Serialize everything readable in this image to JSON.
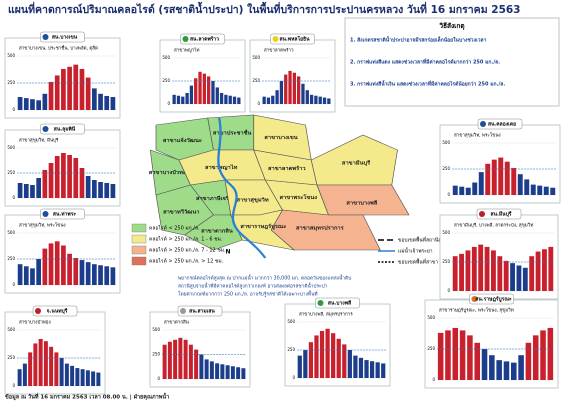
{
  "title": "แผนที่คาดการณ์ปริมาณคลอไรด์ (รสชาติน้ำประปา) ในพื้นที่บริการการประปานครหลวง วันที่ 16 มกราคม 2563",
  "panels": [
    {
      "label": "สน.บางเขน",
      "subtitle": "สาขาบางเขน, ประชาชื่น, บางพลัด, ดุสิต",
      "badge_color": "#1f4e9c",
      "threshold": 250,
      "ylim": [
        0,
        500
      ],
      "yticks": [
        0,
        250,
        500
      ],
      "colors": {
        "above": "#c8202c",
        "below": "#1c3d8c"
      },
      "values": [
        120,
        110,
        100,
        90,
        150,
        260,
        320,
        380,
        400,
        420,
        380,
        300,
        200,
        150,
        130,
        120
      ]
    },
    {
      "label": "สน.ลาดพร้าว",
      "subtitle": "สาขาพญาไท",
      "badge_color": "#2e9b3a",
      "threshold": 250,
      "ylim": [
        0,
        500
      ],
      "yticks": [
        0,
        250,
        500
      ],
      "colors": {
        "above": "#c8202c",
        "below": "#1c3d8c"
      },
      "values": [
        100,
        90,
        80,
        120,
        200,
        280,
        350,
        330,
        300,
        250,
        180,
        120,
        100,
        90,
        80,
        70
      ]
    },
    {
      "label": "สน.พหลโยธิน",
      "subtitle": "สาขาลาดพร้าว",
      "badge_color": "#e8d21f",
      "threshold": 250,
      "ylim": [
        0,
        500
      ],
      "yticks": [
        0,
        250,
        500
      ],
      "colors": {
        "above": "#c8202c",
        "below": "#1c3d8c"
      },
      "values": [
        80,
        70,
        90,
        150,
        250,
        320,
        360,
        340,
        300,
        220,
        150,
        100,
        90,
        80,
        70,
        60
      ]
    },
    {
      "label": "สน.ลุมพินี",
      "subtitle": "สาขาสุขุมวิท, มีนบุรี",
      "badge_color": "#1f4e9c",
      "threshold": 250,
      "ylim": [
        0,
        500
      ],
      "yticks": [
        0,
        250,
        500
      ],
      "colors": {
        "above": "#c8202c",
        "below": "#1c3d8c"
      },
      "values": [
        150,
        140,
        130,
        200,
        280,
        350,
        420,
        450,
        430,
        400,
        300,
        220,
        180,
        160,
        150,
        140
      ]
    },
    {
      "label": "สน.ท่าพระ",
      "subtitle": "สาขาสุขุมวิท, พระโขนง",
      "badge_color": "#1f4e9c",
      "threshold": 250,
      "ylim": [
        0,
        500
      ],
      "yticks": [
        0,
        250,
        500
      ],
      "colors": {
        "above": "#c8202c",
        "below": "#1c3d8c"
      },
      "values": [
        200,
        180,
        160,
        250,
        350,
        400,
        420,
        380,
        300,
        260,
        240,
        220,
        200,
        190,
        180,
        170
      ]
    },
    {
      "label": "สน.คลองเตย",
      "subtitle": "สาขาสุขุมวิท, พระโขนง",
      "badge_color": "#1f4e9c",
      "threshold": 250,
      "ylim": [
        0,
        500
      ],
      "yticks": [
        0,
        250,
        500
      ],
      "colors": {
        "above": "#c8202c",
        "below": "#1c3d8c"
      },
      "values": [
        90,
        80,
        70,
        120,
        220,
        300,
        340,
        360,
        320,
        260,
        200,
        150,
        100,
        90,
        80,
        70
      ]
    },
    {
      "label": "สน.มีนบุรี",
      "subtitle": "สาขามีนบุรี, บางพลี, ลาดกระบัง, สุขุมวิท",
      "badge_color": "#b8202a",
      "threshold": 250,
      "ylim": [
        0,
        500
      ],
      "yticks": [
        0,
        250,
        500
      ],
      "colors": {
        "above": "#c8202c",
        "below": "#1c3d8c"
      },
      "values": [
        300,
        320,
        350,
        380,
        400,
        380,
        350,
        300,
        260,
        240,
        220,
        200,
        300,
        340,
        360,
        380
      ]
    },
    {
      "label": "จ.นนทบุรี",
      "subtitle": "สาขาบางบัวทอง",
      "badge_color": "#b8202a",
      "threshold": 250,
      "ylim": [
        0,
        500
      ],
      "yticks": [
        0,
        250,
        500
      ],
      "colors": {
        "above": "#c8202c",
        "below": "#1c3d8c"
      },
      "values": [
        150,
        200,
        300,
        380,
        420,
        400,
        350,
        300,
        250,
        200,
        180,
        160,
        150,
        140,
        130,
        120
      ]
    },
    {
      "label": "สน.สามเสน",
      "subtitle": "สาขาตากสิน",
      "badge_color": "#999999",
      "threshold": 250,
      "ylim": [
        0,
        500
      ],
      "yticks": [
        0,
        250,
        500
      ],
      "colors": {
        "above": "#c8202c",
        "below": "#1c3d8c"
      },
      "values": [
        350,
        380,
        400,
        420,
        400,
        350,
        300,
        250,
        200,
        180,
        160,
        150,
        140,
        130,
        120,
        110
      ]
    },
    {
      "label": "สน.บางพลี",
      "subtitle": "สาขาบางพลี, สมุทรปราการ",
      "badge_color": "#2e9b3a",
      "threshold": 250,
      "ylim": [
        0,
        500
      ],
      "yticks": [
        0,
        250,
        500
      ],
      "colors": {
        "above": "#c8202c",
        "below": "#1c3d8c"
      },
      "values": [
        200,
        250,
        320,
        380,
        420,
        440,
        400,
        350,
        300,
        250,
        200,
        180,
        160,
        150,
        140,
        130
      ]
    },
    {
      "label": "สน.ราษฎร์บูรณะ",
      "subtitle": "สาขาราษฎร์บูรณะ, พระโขนง, สุขุมวิท",
      "badge_color": "#e07020",
      "threshold": 250,
      "ylim": [
        0,
        500
      ],
      "yticks": [
        0,
        250,
        500
      ],
      "colors": {
        "above": "#c8202c",
        "below": "#1c3d8c"
      },
      "values": [
        380,
        400,
        420,
        400,
        360,
        300,
        250,
        200,
        160,
        150,
        140,
        200,
        300,
        360,
        400,
        420
      ]
    }
  ],
  "guide": {
    "title": "วิธีสังเกตุ",
    "items": [
      "1. สังเกตรสชาติน้ำประปาอาจมีรสกร่อยเล็กน้อยในบางช่วงเวลา",
      "2. กราฟแท่งสีแดง แสดงช่วงเวลาที่มีค่าคลอไรด์มากกว่า 250 มก./ล.",
      "3. กราฟแท่งสีน้ำเงิน แสดงช่วงเวลาที่มีค่าคลอไรด์น้อยกว่า 250 มก./ล."
    ]
  },
  "map": {
    "districts": [
      {
        "name": "สาขาแจ้งวัฒนะ",
        "color": "#9fdc8a"
      },
      {
        "name": "สาขาประชาชื่น",
        "color": "#9fdc8a"
      },
      {
        "name": "สาขาบางเขน",
        "color": "#f4ea8c"
      },
      {
        "name": "สาขาบางบัวทอง",
        "color": "#9fdc8a"
      },
      {
        "name": "สาขาทวีวัฒนา",
        "color": "#9fdc8a"
      },
      {
        "name": "สาขาพญาไท",
        "color": "#f4ea8c"
      },
      {
        "name": "สาขาลาดพร้าว",
        "color": "#f4ea8c"
      },
      {
        "name": "สาขามีนบุรี",
        "color": "#f4ea8c"
      },
      {
        "name": "สาขาภาษีเจริญ",
        "color": "#9fdc8a"
      },
      {
        "name": "สาขาตากสิน",
        "color": "#9fdc8a"
      },
      {
        "name": "สาขาสุขุมวิท",
        "color": "#f4ea8c"
      },
      {
        "name": "สาขาพระโขนง",
        "color": "#f4ea8c"
      },
      {
        "name": "สาขาบางพลี",
        "color": "#f5b38f"
      },
      {
        "name": "สาขาสมุทรปราการ",
        "color": "#f5b38f"
      },
      {
        "name": "สาขาราษฎร์บูรณะ",
        "color": "#f4ea8c"
      }
    ],
    "legend": [
      {
        "label": "คลอไรด์ < 250 มก./ล.",
        "color": "#9fdc8a"
      },
      {
        "label": "คลอไรด์ > 250 มก./ล. 1 - 6 ชม.",
        "color": "#f4ea8c"
      },
      {
        "label": "คลอไรด์ > 250 มก./ล. 7 - 12 ชม.",
        "color": "#f5b38f"
      },
      {
        "label": "คลอไรด์ > 250 มก./ล. > 12 ชม.",
        "color": "#e0705a"
      }
    ],
    "line_legend": [
      "ขอบเขตพื้นที่สถานีสูบจ่าย",
      "แม่น้ำเจ้าพระยา",
      "ขอบเขตพื้นที่สาขา"
    ],
    "north": "N"
  },
  "notes": [
    "พยากรณ์คลอไรด์สูงสุด ณ ปากแม่น้ำ มากกว่า 30,000 มก. ตลอดวันของแหล่งน้ำดิบ",
    "สถานีสูบจ่ายน้ำที่มีค่าคลอไรด์สูงกว่าเกณฑ์ อาจส่งผลต่อรสชาติน้ำประปา",
    "โดยค่าเกณฑ์มากกว่า 250 มก./ล. อาจรับรู้รสชาติได้เฉพาะบางพื้นที่"
  ],
  "footer": "ข้อมูล ณ วันที่ 16 มกราคม 2563 เวลา 08.00 น. | ฝ่ายคุณภาพน้ำ"
}
